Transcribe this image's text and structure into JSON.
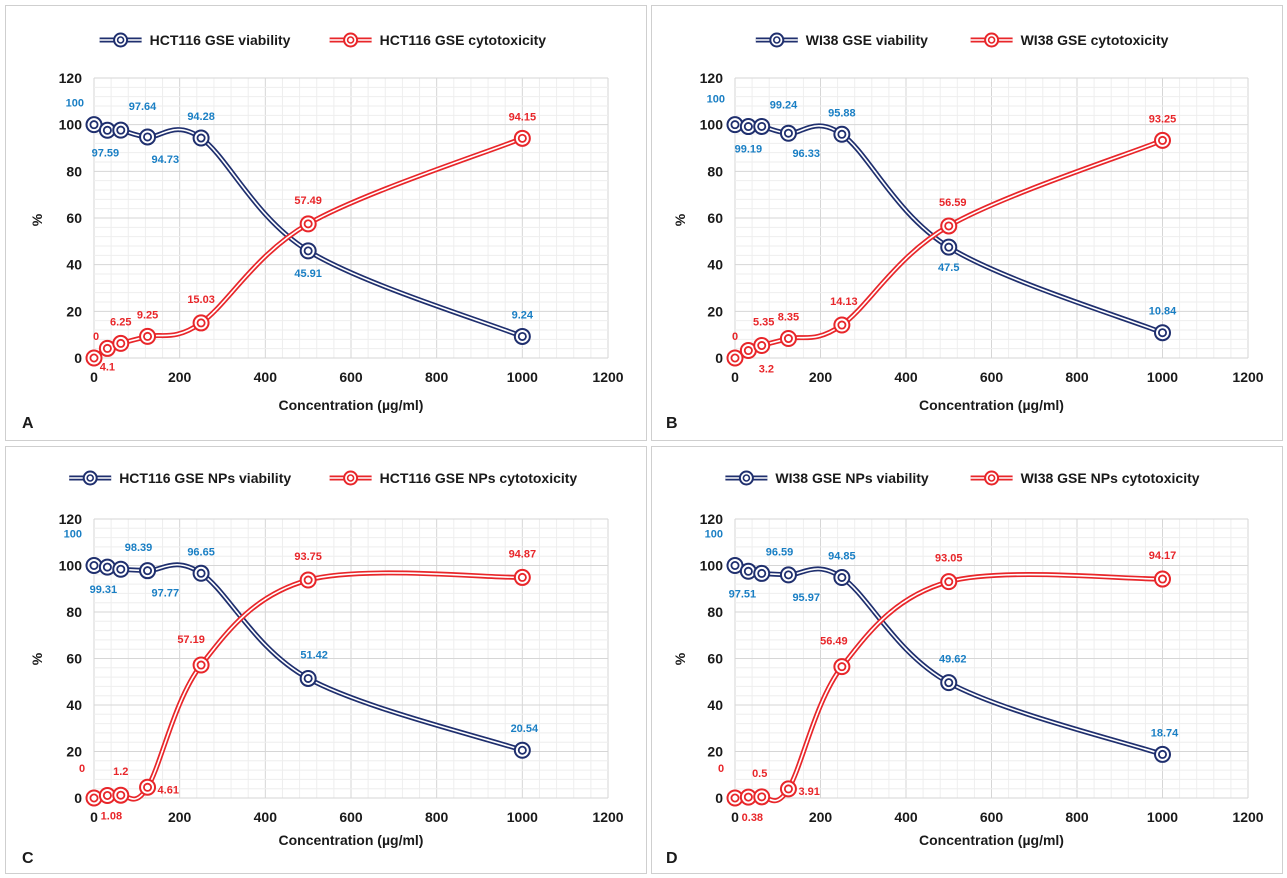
{
  "colors": {
    "viability": "#1f2f6e",
    "cytotoxicity": "#e8262a",
    "viability_label": "#1a7fc4",
    "cytotoxicity_label": "#e8262a",
    "grid_major": "#d6d6d6",
    "grid_minor": "#eeeeee"
  },
  "chart_data": [
    {
      "type": "line",
      "panel": "A",
      "xlabel": "Concentration (µg/ml)",
      "ylabel": "%",
      "xlim": [
        0,
        1200
      ],
      "ylim": [
        0,
        120
      ],
      "xticks": [
        "0",
        "200",
        "400",
        "600",
        "800",
        "1000",
        "1200"
      ],
      "yticks": [
        "0",
        "20",
        "40",
        "60",
        "80",
        "100",
        "120"
      ],
      "grid": true,
      "legend": "top",
      "x": [
        0,
        31.25,
        62.5,
        125,
        250,
        500,
        1000
      ],
      "series": [
        {
          "name": "HCT116 GSE viability",
          "values": [
            100,
            97.59,
            97.64,
            94.73,
            94.28,
            45.91,
            9.24
          ],
          "labels": [
            "100",
            "97.59",
            "97.64",
            "94.73",
            "94.28",
            "45.91",
            "9.24"
          ]
        },
        {
          "name": "HCT116 GSE cytotoxicity",
          "values": [
            0,
            4.1,
            6.25,
            9.25,
            15.03,
            57.49,
            94.15
          ],
          "labels": [
            "0",
            "4.1",
            "6.25",
            "9.25",
            "15.03",
            "57.49",
            "94.15"
          ]
        }
      ]
    },
    {
      "type": "line",
      "panel": "B",
      "xlabel": "Concentration (µg/ml)",
      "ylabel": "%",
      "xlim": [
        0,
        1200
      ],
      "ylim": [
        0,
        120
      ],
      "xticks": [
        "0",
        "200",
        "400",
        "600",
        "800",
        "1000",
        "1200"
      ],
      "yticks": [
        "0",
        "20",
        "40",
        "60",
        "80",
        "100",
        "120"
      ],
      "grid": true,
      "legend": "top",
      "x": [
        0,
        31.25,
        62.5,
        125,
        250,
        500,
        1000
      ],
      "series": [
        {
          "name": "WI38 GSE viability",
          "values": [
            100,
            99.19,
            99.24,
            96.33,
            95.88,
            47.5,
            10.84
          ],
          "labels": [
            "100",
            "99.19",
            "99.24",
            "96.33",
            "95.88",
            "47.5",
            "10.84"
          ]
        },
        {
          "name": "WI38 GSE cytotoxicity",
          "values": [
            0,
            3.2,
            5.35,
            8.35,
            14.13,
            56.59,
            93.25
          ],
          "labels": [
            "0",
            "3.2",
            "5.35",
            "8.35",
            "14.13",
            "56.59",
            "93.25"
          ]
        }
      ]
    },
    {
      "type": "line",
      "panel": "C",
      "xlabel": "Concentration (µg/ml)",
      "ylabel": "%",
      "xlim": [
        0,
        1200
      ],
      "ylim": [
        0,
        120
      ],
      "xticks": [
        "0",
        "200",
        "400",
        "600",
        "800",
        "1000",
        "1200"
      ],
      "yticks": [
        "0",
        "20",
        "40",
        "60",
        "80",
        "100",
        "120"
      ],
      "grid": true,
      "legend": "top",
      "x": [
        0,
        31.25,
        62.5,
        125,
        250,
        500,
        1000
      ],
      "series": [
        {
          "name": "HCT116 GSE NPs viability",
          "values": [
            100,
            99.31,
            98.39,
            97.77,
            96.65,
            51.42,
            20.54
          ],
          "labels": [
            "100",
            "99.31",
            "98.39",
            "97.77",
            "96.65",
            "51.42",
            "20.54"
          ]
        },
        {
          "name": "HCT116 GSE NPs cytotoxicity",
          "values": [
            0,
            1.08,
            1.2,
            4.61,
            57.19,
            93.75,
            94.87
          ],
          "labels": [
            "0",
            "1.08",
            "1.2",
            "4.61",
            "57.19",
            "93.75",
            "94.87"
          ]
        }
      ]
    },
    {
      "type": "line",
      "panel": "D",
      "xlabel": "Concentration (µg/ml)",
      "ylabel": "%",
      "xlim": [
        0,
        1200
      ],
      "ylim": [
        0,
        120
      ],
      "xticks": [
        "0",
        "200",
        "400",
        "600",
        "800",
        "1000",
        "1200"
      ],
      "yticks": [
        "0",
        "20",
        "40",
        "60",
        "80",
        "100",
        "120"
      ],
      "grid": true,
      "legend": "top",
      "x": [
        0,
        31.25,
        62.5,
        125,
        250,
        500,
        1000
      ],
      "series": [
        {
          "name": "WI38 GSE NPs viability",
          "values": [
            100,
            97.51,
            96.59,
            95.97,
            94.85,
            49.62,
            18.74
          ],
          "labels": [
            "100",
            "97.51",
            "96.59",
            "95.97",
            "94.85",
            "49.62",
            "18.74"
          ]
        },
        {
          "name": "WI38 GSE NPs cytotoxicity",
          "values": [
            0,
            0.38,
            0.5,
            3.91,
            56.49,
            93.05,
            94.17
          ],
          "labels": [
            "0",
            "0.38",
            "0.5",
            "3.91",
            "56.49",
            "93.05",
            "94.17"
          ]
        }
      ]
    }
  ]
}
